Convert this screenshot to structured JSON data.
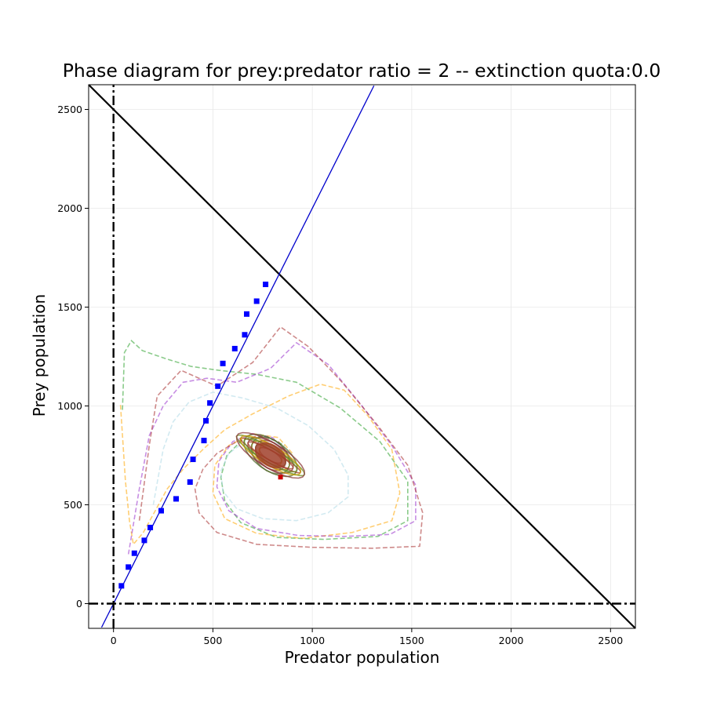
{
  "chart_data": {
    "type": "line",
    "title": "Phase diagram for prey:predator ratio = 2 -- extinction quota:0.0",
    "xlabel": "Predator population",
    "ylabel": "Prey population",
    "xlim": [
      -125,
      2625
    ],
    "ylim": [
      -125,
      2625
    ],
    "x_ticks": [
      0,
      500,
      1000,
      1500,
      2000,
      2500
    ],
    "y_ticks": [
      0,
      500,
      1000,
      1500,
      2000,
      2500
    ],
    "x_tick_labels": [
      "0",
      "500",
      "1000",
      "1500",
      "2000",
      "2500"
    ],
    "y_tick_labels": [
      "0",
      "500",
      "1000",
      "1500",
      "2000",
      "2500"
    ],
    "grid": true,
    "reference_lines": [
      {
        "name": "capacity",
        "style": "solid",
        "color": "#000000",
        "from": [
          -125,
          2625
        ],
        "to": [
          2625,
          -125
        ]
      },
      {
        "name": "ratio",
        "style": "solid",
        "color": "#0000cc",
        "from": [
          -60,
          -120
        ],
        "to": [
          1310,
          2620
        ]
      },
      {
        "name": "x-zero",
        "style": "dashdot",
        "color": "#000000",
        "orientation": "vertical",
        "value": 0
      },
      {
        "name": "y-zero",
        "style": "dashdot",
        "color": "#000000",
        "orientation": "horizontal",
        "value": 0
      }
    ],
    "markers": {
      "color": "#0000ff",
      "shape": "square",
      "points": [
        [
          40,
          90
        ],
        [
          75,
          185
        ],
        [
          105,
          255
        ],
        [
          155,
          320
        ],
        [
          185,
          385
        ],
        [
          240,
          470
        ],
        [
          315,
          530
        ],
        [
          385,
          615
        ],
        [
          400,
          730
        ],
        [
          455,
          825
        ],
        [
          465,
          925
        ],
        [
          485,
          1015
        ],
        [
          525,
          1100
        ],
        [
          550,
          1215
        ],
        [
          610,
          1290
        ],
        [
          660,
          1360
        ],
        [
          670,
          1465
        ],
        [
          720,
          1530
        ],
        [
          765,
          1615
        ]
      ]
    },
    "equilibrium": {
      "x": 790,
      "y": 750,
      "color": "#a0402a"
    },
    "end_point": {
      "x": 840,
      "y": 640,
      "color": "#cc0000"
    },
    "series": [
      {
        "color": "#2ca02c",
        "values": [
          [
            45,
            980
          ],
          [
            55,
            1270
          ],
          [
            90,
            1330
          ],
          [
            145,
            1280
          ],
          [
            260,
            1240
          ],
          [
            390,
            1200
          ],
          [
            530,
            1180
          ],
          [
            720,
            1160
          ],
          [
            920,
            1120
          ],
          [
            1140,
            990
          ],
          [
            1340,
            820
          ],
          [
            1480,
            620
          ],
          [
            1480,
            420
          ],
          [
            1330,
            340
          ],
          [
            1060,
            325
          ],
          [
            820,
            335
          ],
          [
            640,
            410
          ],
          [
            560,
            520
          ],
          [
            540,
            640
          ],
          [
            570,
            750
          ],
          [
            650,
            830
          ],
          [
            760,
            850
          ],
          [
            860,
            800
          ]
        ]
      },
      {
        "color": "#ffa500",
        "values": [
          [
            35,
            1005
          ],
          [
            60,
            620
          ],
          [
            80,
            420
          ],
          [
            100,
            300
          ],
          [
            150,
            360
          ],
          [
            210,
            470
          ],
          [
            270,
            580
          ],
          [
            350,
            680
          ],
          [
            450,
            780
          ],
          [
            560,
            880
          ],
          [
            700,
            960
          ],
          [
            880,
            1050
          ],
          [
            1040,
            1110
          ],
          [
            1160,
            1080
          ],
          [
            1280,
            950
          ],
          [
            1400,
            780
          ],
          [
            1440,
            560
          ],
          [
            1400,
            420
          ],
          [
            1200,
            360
          ],
          [
            950,
            330
          ],
          [
            720,
            355
          ],
          [
            560,
            430
          ],
          [
            500,
            560
          ],
          [
            510,
            700
          ],
          [
            580,
            800
          ],
          [
            700,
            860
          ],
          [
            830,
            840
          ],
          [
            900,
            760
          ]
        ]
      },
      {
        "color": "#9932cc",
        "values": [
          [
            75,
            250
          ],
          [
            130,
            580
          ],
          [
            180,
            850
          ],
          [
            250,
            1000
          ],
          [
            350,
            1120
          ],
          [
            470,
            1140
          ],
          [
            620,
            1120
          ],
          [
            790,
            1190
          ],
          [
            920,
            1320
          ],
          [
            1080,
            1210
          ],
          [
            1250,
            1000
          ],
          [
            1400,
            800
          ],
          [
            1520,
            600
          ],
          [
            1520,
            420
          ],
          [
            1390,
            350
          ],
          [
            1160,
            340
          ],
          [
            930,
            345
          ],
          [
            720,
            380
          ],
          [
            580,
            470
          ],
          [
            520,
            590
          ],
          [
            530,
            720
          ],
          [
            600,
            820
          ],
          [
            700,
            860
          ],
          [
            800,
            840
          ],
          [
            870,
            770
          ]
        ]
      },
      {
        "color": "#a52a2a",
        "values": [
          [
            130,
            420
          ],
          [
            180,
            800
          ],
          [
            220,
            1050
          ],
          [
            340,
            1180
          ],
          [
            520,
            1100
          ],
          [
            700,
            1220
          ],
          [
            840,
            1400
          ],
          [
            980,
            1300
          ],
          [
            1150,
            1120
          ],
          [
            1330,
            900
          ],
          [
            1480,
            700
          ],
          [
            1555,
            460
          ],
          [
            1540,
            290
          ],
          [
            1300,
            280
          ],
          [
            1000,
            285
          ],
          [
            720,
            300
          ],
          [
            520,
            360
          ],
          [
            430,
            460
          ],
          [
            410,
            580
          ],
          [
            450,
            680
          ],
          [
            520,
            760
          ],
          [
            620,
            820
          ],
          [
            730,
            850
          ],
          [
            830,
            820
          ],
          [
            880,
            740
          ]
        ]
      },
      {
        "color": "#add8e6",
        "values": [
          [
            200,
            500
          ],
          [
            250,
            780
          ],
          [
            300,
            920
          ],
          [
            380,
            1020
          ],
          [
            500,
            1070
          ],
          [
            650,
            1040
          ],
          [
            820,
            990
          ],
          [
            980,
            900
          ],
          [
            1110,
            780
          ],
          [
            1180,
            650
          ],
          [
            1180,
            540
          ],
          [
            1080,
            460
          ],
          [
            920,
            420
          ],
          [
            750,
            430
          ],
          [
            620,
            480
          ],
          [
            550,
            570
          ],
          [
            540,
            670
          ],
          [
            580,
            760
          ],
          [
            660,
            820
          ],
          [
            760,
            840
          ],
          [
            840,
            800
          ]
        ]
      }
    ]
  }
}
